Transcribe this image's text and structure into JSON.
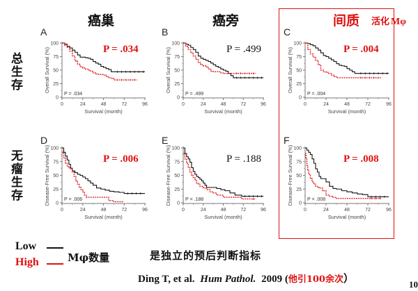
{
  "column_titles": [
    {
      "text": "癌巢",
      "color": "#111111"
    },
    {
      "text": "癌旁",
      "color": "#111111"
    },
    {
      "text": "间质",
      "color": "#e01010"
    }
  ],
  "highlight_suffix": {
    "cn": "活化",
    "symbol": "Mφ"
  },
  "row_labels": [
    "总生存",
    "无瘤生存"
  ],
  "colors": {
    "low": "#111111",
    "high": "#e02020",
    "accent": "#e01010"
  },
  "legend": {
    "low_label": "Low",
    "high_label": "High",
    "group_label": "Mφ数量"
  },
  "conclusion": "是独立的预后判断指标",
  "citation": {
    "authors": "Ding  T, et al.",
    "journal": "Hum Pathol.",
    "year": "2009",
    "note_open": "(",
    "note": "他引100余次",
    "note_close": "）"
  },
  "page_number": "10",
  "chart_data": [
    {
      "type": "line",
      "panel": "A",
      "title": "",
      "xlabel": "Survival (month)",
      "ylabel": "Overall Survival (%)",
      "xlim": [
        0,
        96
      ],
      "ylim": [
        0,
        100
      ],
      "xticks": [
        0,
        24,
        48,
        72,
        96
      ],
      "yticks": [
        0,
        25,
        50,
        75,
        100
      ],
      "p_inset": "P = .034",
      "p_big": "P = .034",
      "p_big_color": "#e01010",
      "series": [
        {
          "name": "Low",
          "x": [
            0,
            3,
            6,
            9,
            12,
            15,
            18,
            21,
            24,
            27,
            30,
            33,
            36,
            39,
            42,
            45,
            48,
            51,
            54,
            57,
            60,
            96
          ],
          "values": [
            100,
            98,
            94,
            91,
            87,
            83,
            78,
            74,
            74,
            73,
            72,
            70,
            66,
            63,
            61,
            57,
            55,
            53,
            51,
            47,
            47,
            47
          ]
        },
        {
          "name": "High",
          "x": [
            0,
            3,
            6,
            9,
            12,
            15,
            18,
            21,
            24,
            27,
            30,
            33,
            36,
            39,
            42,
            45,
            48,
            51,
            54,
            57,
            60,
            87
          ],
          "values": [
            100,
            96,
            92,
            85,
            76,
            67,
            61,
            56,
            54,
            52,
            50,
            48,
            45,
            43,
            42,
            42,
            41,
            38,
            36,
            35,
            32,
            32
          ]
        }
      ]
    },
    {
      "type": "line",
      "panel": "B",
      "title": "",
      "xlabel": "Survival (month)",
      "ylabel": "Overall Survival (%)",
      "xlim": [
        0,
        96
      ],
      "ylim": [
        0,
        100
      ],
      "xticks": [
        0,
        24,
        48,
        72,
        96
      ],
      "yticks": [
        0,
        25,
        50,
        75,
        100
      ],
      "p_inset": "P = .499",
      "p_big": "P = .499",
      "p_big_color": "#111111",
      "series": [
        {
          "name": "Low",
          "x": [
            0,
            3,
            6,
            9,
            12,
            15,
            18,
            21,
            24,
            27,
            30,
            33,
            36,
            39,
            42,
            45,
            48,
            51,
            54,
            57,
            60,
            96
          ],
          "values": [
            100,
            98,
            96,
            92,
            88,
            83,
            76,
            72,
            70,
            68,
            66,
            63,
            60,
            57,
            55,
            52,
            50,
            48,
            44,
            40,
            36,
            36
          ]
        },
        {
          "name": "High",
          "x": [
            0,
            3,
            6,
            9,
            12,
            15,
            18,
            21,
            24,
            27,
            30,
            33,
            36,
            39,
            42,
            45,
            48,
            51,
            54,
            57,
            60,
            87
          ],
          "values": [
            100,
            94,
            88,
            82,
            76,
            70,
            64,
            60,
            58,
            56,
            52,
            48,
            47,
            47,
            47,
            45,
            44,
            44,
            44,
            44,
            44,
            44
          ]
        }
      ]
    },
    {
      "type": "line",
      "panel": "C",
      "title": "",
      "xlabel": "Survival (month)",
      "ylabel": "Overall Survival (%)",
      "xlim": [
        0,
        96
      ],
      "ylim": [
        0,
        100
      ],
      "xticks": [
        0,
        24,
        48,
        72,
        96
      ],
      "yticks": [
        0,
        25,
        50,
        75,
        100
      ],
      "p_inset": "P = .004",
      "p_big": "P = .004",
      "p_big_color": "#e01010",
      "series": [
        {
          "name": "Low",
          "x": [
            0,
            3,
            6,
            9,
            12,
            15,
            18,
            21,
            24,
            27,
            30,
            33,
            36,
            39,
            42,
            45,
            48,
            51,
            54,
            57,
            60,
            96
          ],
          "values": [
            100,
            99,
            97,
            95,
            91,
            87,
            82,
            77,
            75,
            72,
            69,
            66,
            62,
            59,
            58,
            57,
            53,
            50,
            47,
            44,
            44,
            44
          ]
        },
        {
          "name": "High",
          "x": [
            0,
            3,
            6,
            9,
            12,
            15,
            18,
            21,
            24,
            27,
            30,
            33,
            36,
            39,
            42,
            45,
            48,
            51,
            54,
            57,
            60,
            87
          ],
          "values": [
            100,
            88,
            80,
            74,
            68,
            60,
            50,
            47,
            46,
            44,
            41,
            38,
            36,
            36,
            36,
            36,
            36,
            36,
            36,
            36,
            36,
            36
          ]
        }
      ]
    },
    {
      "type": "line",
      "panel": "D",
      "title": "",
      "xlabel": "Survival (month)",
      "ylabel": "Disease-Free Survival (%)",
      "xlim": [
        0,
        96
      ],
      "ylim": [
        0,
        100
      ],
      "xticks": [
        0,
        24,
        48,
        72,
        96
      ],
      "yticks": [
        0,
        25,
        50,
        75,
        100
      ],
      "p_inset": "P = .006",
      "p_big": "P = .006",
      "p_big_color": "#e01010",
      "series": [
        {
          "name": "Low",
          "x": [
            0,
            2,
            4,
            6,
            8,
            10,
            12,
            15,
            18,
            21,
            24,
            27,
            30,
            33,
            36,
            40,
            45,
            50,
            55,
            60,
            66,
            72,
            96
          ],
          "values": [
            100,
            92,
            85,
            78,
            70,
            63,
            58,
            55,
            52,
            50,
            47,
            44,
            40,
            36,
            32,
            27,
            25,
            23,
            21,
            20,
            19,
            17,
            17
          ]
        },
        {
          "name": "High",
          "x": [
            0,
            2,
            4,
            6,
            8,
            10,
            12,
            14,
            16,
            18,
            20,
            22,
            24,
            26,
            28,
            36,
            44,
            50,
            54,
            60,
            66,
            70
          ],
          "values": [
            92,
            82,
            72,
            66,
            64,
            62,
            56,
            48,
            40,
            34,
            28,
            24,
            20,
            14,
            10,
            10,
            10,
            10,
            4,
            2,
            2,
            0
          ]
        }
      ]
    },
    {
      "type": "line",
      "panel": "E",
      "title": "",
      "xlabel": "Survival (month)",
      "ylabel": "Disease-Free Survival (%)",
      "xlim": [
        0,
        96
      ],
      "ylim": [
        0,
        100
      ],
      "xticks": [
        0,
        24,
        48,
        72,
        96
      ],
      "yticks": [
        0,
        25,
        50,
        75,
        100
      ],
      "p_inset": "P = .188",
      "p_big": "P = .188",
      "p_big_color": "#111111",
      "series": [
        {
          "name": "Low",
          "x": [
            0,
            2,
            4,
            6,
            8,
            10,
            12,
            14,
            16,
            18,
            20,
            22,
            24,
            26,
            28,
            32,
            36,
            40,
            45,
            50,
            56,
            62,
            70,
            96
          ],
          "values": [
            100,
            90,
            84,
            80,
            74,
            64,
            57,
            52,
            48,
            46,
            43,
            40,
            36,
            32,
            28,
            28,
            28,
            26,
            24,
            22,
            18,
            14,
            12,
            12
          ]
        },
        {
          "name": "High",
          "x": [
            0,
            2,
            4,
            6,
            8,
            10,
            12,
            14,
            16,
            18,
            20,
            24,
            28,
            32,
            36,
            40,
            48,
            56,
            64,
            70,
            80,
            87
          ],
          "values": [
            90,
            80,
            72,
            64,
            56,
            50,
            46,
            42,
            36,
            34,
            30,
            27,
            24,
            20,
            18,
            14,
            10,
            10,
            10,
            7,
            7,
            7
          ]
        }
      ]
    },
    {
      "type": "line",
      "panel": "F",
      "title": "",
      "xlabel": "Survival (month)",
      "ylabel": "Disease-Free Survival (%)",
      "xlim": [
        0,
        96
      ],
      "ylim": [
        0,
        100
      ],
      "xticks": [
        0,
        24,
        48,
        72,
        96
      ],
      "yticks": [
        0,
        25,
        50,
        75,
        100
      ],
      "p_inset": "P = .008",
      "p_big": "P = .008",
      "p_big_color": "#e01010",
      "series": [
        {
          "name": "Low",
          "x": [
            0,
            2,
            4,
            6,
            8,
            10,
            12,
            14,
            16,
            18,
            20,
            24,
            28,
            32,
            36,
            42,
            48,
            54,
            60,
            66,
            72,
            96
          ],
          "values": [
            100,
            96,
            92,
            88,
            80,
            72,
            62,
            56,
            48,
            44,
            44,
            38,
            30,
            26,
            25,
            22,
            20,
            18,
            16,
            15,
            11,
            11
          ]
        },
        {
          "name": "High",
          "x": [
            0,
            1,
            2,
            3,
            4,
            6,
            8,
            10,
            12,
            14,
            16,
            20,
            24,
            28,
            32,
            36,
            48,
            60,
            72,
            87
          ],
          "values": [
            90,
            80,
            68,
            60,
            52,
            44,
            38,
            34,
            30,
            28,
            27,
            22,
            14,
            12,
            10,
            8,
            8,
            8,
            8,
            8
          ]
        }
      ]
    }
  ]
}
